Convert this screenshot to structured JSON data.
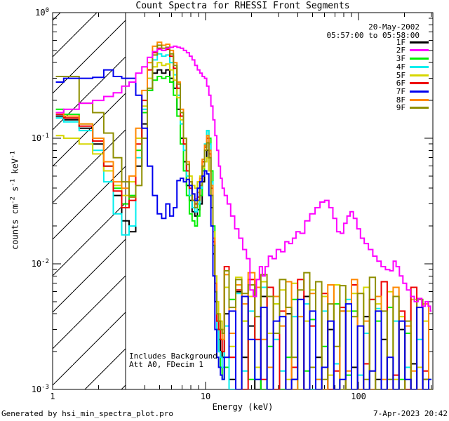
{
  "title": "Count Spectra for RHESSI Front Segments",
  "header": {
    "date": "20-May-2002",
    "time_range": "05:57:00 to 05:58:00"
  },
  "annotations": {
    "line1": "Includes Background",
    "line2": "Att A0, FDecim 1"
  },
  "footer": {
    "left": "Generated by hsi_min_spectra_plot.pro",
    "right": "7-Apr-2023 20:42"
  },
  "axes": {
    "ylabel_parts": [
      "counts cm",
      "-2",
      " s",
      "-1",
      " keV",
      "-1"
    ]
  },
  "chart_data": {
    "type": "line",
    "title": "Count Spectra for RHESSI Front Segments",
    "xlabel": "Energy (keV)",
    "ylabel": "counts cm^-2 s^-1 keV^-1",
    "xscale": "log",
    "yscale": "log",
    "xlim": [
      1,
      306
    ],
    "ylim": [
      0.001,
      1
    ],
    "grid": false,
    "legend_position": "top-right-inside",
    "x_ticks": [
      {
        "value": 1,
        "label": "1"
      },
      {
        "value": 10,
        "label": "10"
      },
      {
        "value": 100,
        "label": "100"
      }
    ],
    "y_ticks": [
      {
        "value": 1,
        "base": "10",
        "exp": "0"
      },
      {
        "value": 0.1,
        "base": "10",
        "exp": "-1"
      },
      {
        "value": 0.01,
        "base": "10",
        "exp": "-2"
      },
      {
        "value": 0.001,
        "base": "10",
        "exp": "-3"
      }
    ],
    "hatch_region": {
      "xmin": 1,
      "xmax": 3
    },
    "energy_grids": {
      "default": [
        1.05,
        1.33,
        1.67,
        2.0,
        2.33,
        2.67,
        3.0,
        3.33,
        3.67,
        4.0,
        4.33,
        4.67,
        5.0,
        5.33,
        5.67,
        6.0,
        6.33,
        6.67,
        7.0,
        7.33,
        7.67,
        8.0,
        8.33,
        8.67,
        9.0,
        9.33,
        9.67,
        10.0,
        10.33,
        10.67,
        11.0,
        11.33,
        11.67,
        12.0,
        12.33,
        12.67,
        13.0,
        13.5,
        15,
        16.5,
        18,
        20,
        22,
        24,
        26.5,
        29,
        32,
        35,
        38,
        42,
        46,
        50,
        55,
        60,
        66,
        72,
        79,
        86,
        94,
        103,
        113,
        123,
        135,
        147,
        161,
        176,
        192,
        210,
        230,
        251,
        275,
        300
      ],
      "f2": [
        1.05,
        1.33,
        1.67,
        2.0,
        2.33,
        2.67,
        3.0,
        3.33,
        3.67,
        4.0,
        4.33,
        4.67,
        5.0,
        5.33,
        5.67,
        6.0,
        6.33,
        6.67,
        7.0,
        7.33,
        7.67,
        8.0,
        8.33,
        8.67,
        9.0,
        9.33,
        9.67,
        10.0,
        10.33,
        10.67,
        11.0,
        11.33,
        11.67,
        12.0,
        12.33,
        12.67,
        13.0,
        13.5,
        14.2,
        15,
        16,
        17,
        18,
        19,
        20,
        21,
        22,
        23,
        24,
        25,
        26.5,
        28,
        30,
        32,
        34,
        36,
        38,
        40,
        43,
        46,
        50,
        54,
        58,
        62,
        66,
        70,
        74,
        78,
        82,
        86,
        90,
        95,
        100,
        106,
        112,
        120,
        128,
        136,
        145,
        155,
        165,
        172,
        180,
        190,
        200,
        212,
        225,
        238,
        252,
        266,
        280,
        290,
        300
      ]
    },
    "draw_order": [
      "1F",
      "3F",
      "4F",
      "5F",
      "6F",
      "8F",
      "9F",
      "7F",
      "2F"
    ],
    "series": [
      {
        "name": "1F",
        "color": "#000000",
        "grid": "default",
        "counts": [
          0.15,
          0.14,
          0.12,
          0.09,
          0.055,
          0.035,
          0.022,
          0.018,
          0.06,
          0.13,
          0.24,
          0.33,
          0.35,
          0.33,
          0.35,
          0.3,
          0.25,
          0.17,
          0.1,
          0.065,
          0.042,
          0.032,
          0.026,
          0.024,
          0.027,
          0.03,
          0.045,
          0.065,
          0.08,
          0.055,
          0.028,
          0.012,
          0.005,
          0.003,
          0.0025,
          0.002,
          0.0018,
          0.004,
          0.0012,
          0.006,
          0.0018,
          0.0032,
          0.001,
          0.0055,
          0.0015,
          0.0028,
          0.001,
          0.004,
          0.0012,
          0.001,
          0.0055,
          0.001,
          0.0018,
          0.001,
          0.003,
          0.001,
          0.0042,
          0.001,
          0.0015,
          0.001,
          0.0038,
          0.001,
          0.0012,
          0.0025,
          0.001,
          0.001,
          0.003,
          0.001,
          0.0016,
          0.001,
          0.0012,
          0.001
        ]
      },
      {
        "name": "2F",
        "color": "#ff00ff",
        "grid": "f2",
        "counts": [
          0.16,
          0.17,
          0.19,
          0.2,
          0.215,
          0.23,
          0.26,
          0.28,
          0.33,
          0.37,
          0.44,
          0.49,
          0.51,
          0.5,
          0.52,
          0.53,
          0.54,
          0.53,
          0.52,
          0.5,
          0.48,
          0.45,
          0.42,
          0.38,
          0.35,
          0.33,
          0.31,
          0.3,
          0.26,
          0.22,
          0.18,
          0.14,
          0.105,
          0.08,
          0.06,
          0.048,
          0.04,
          0.035,
          0.03,
          0.024,
          0.019,
          0.016,
          0.013,
          0.011,
          0.0062,
          0.0055,
          0.0075,
          0.0095,
          0.008,
          0.0095,
          0.0115,
          0.011,
          0.013,
          0.0125,
          0.015,
          0.0145,
          0.016,
          0.018,
          0.0175,
          0.022,
          0.025,
          0.028,
          0.031,
          0.032,
          0.028,
          0.023,
          0.018,
          0.0175,
          0.021,
          0.024,
          0.026,
          0.023,
          0.019,
          0.016,
          0.0145,
          0.013,
          0.0115,
          0.0105,
          0.0095,
          0.009,
          0.0088,
          0.0105,
          0.0095,
          0.008,
          0.007,
          0.0062,
          0.0055,
          0.005,
          0.0053,
          0.0046,
          0.005,
          0.0046,
          0.0042
        ]
      },
      {
        "name": "3F",
        "color": "#00ee00",
        "grid": "default",
        "counts": [
          0.17,
          0.155,
          0.13,
          0.1,
          0.06,
          0.04,
          0.03,
          0.035,
          0.08,
          0.16,
          0.24,
          0.29,
          0.31,
          0.3,
          0.31,
          0.28,
          0.22,
          0.15,
          0.09,
          0.055,
          0.035,
          0.025,
          0.022,
          0.02,
          0.024,
          0.035,
          0.055,
          0.085,
          0.115,
          0.1,
          0.055,
          0.02,
          0.007,
          0.003,
          0.002,
          0.0015,
          0.0012,
          0.0015,
          0.0052,
          0.001,
          0.0035,
          0.0012,
          0.0065,
          0.001,
          0.0022,
          0.0048,
          0.001,
          0.0018,
          0.0052,
          0.001,
          0.0014,
          0.0036,
          0.001,
          0.0022,
          0.001,
          0.0048,
          0.001,
          0.0013,
          0.0042,
          0.001,
          0.0016,
          0.001,
          0.0035,
          0.001,
          0.0045,
          0.001,
          0.0012,
          0.0028,
          0.001,
          0.0015,
          0.001,
          0.001
        ]
      },
      {
        "name": "4F",
        "color": "#00eeee",
        "grid": "default",
        "counts": [
          0.145,
          0.135,
          0.115,
          0.08,
          0.045,
          0.025,
          0.017,
          0.02,
          0.07,
          0.17,
          0.3,
          0.42,
          0.47,
          0.45,
          0.46,
          0.4,
          0.32,
          0.22,
          0.13,
          0.08,
          0.05,
          0.035,
          0.028,
          0.026,
          0.03,
          0.04,
          0.06,
          0.09,
          0.115,
          0.09,
          0.045,
          0.015,
          0.006,
          0.003,
          0.002,
          0.0018,
          0.0015,
          0.0032,
          0.001,
          0.0058,
          0.0014,
          0.0042,
          0.0012,
          0.0065,
          0.001,
          0.0025,
          0.0014,
          0.001,
          0.0038,
          0.001,
          0.0048,
          0.001,
          0.0012,
          0.0042,
          0.001,
          0.0016,
          0.001,
          0.0052,
          0.001,
          0.0013,
          0.0028,
          0.001,
          0.0044,
          0.001,
          0.0012,
          0.0035,
          0.001,
          0.0015,
          0.001,
          0.0025,
          0.001,
          0.0012
        ]
      },
      {
        "name": "5F",
        "color": "#d6d600",
        "grid": "default",
        "counts": [
          0.105,
          0.1,
          0.09,
          0.075,
          0.055,
          0.042,
          0.035,
          0.045,
          0.1,
          0.18,
          0.3,
          0.37,
          0.4,
          0.38,
          0.39,
          0.35,
          0.29,
          0.21,
          0.14,
          0.09,
          0.065,
          0.05,
          0.042,
          0.04,
          0.045,
          0.05,
          0.058,
          0.065,
          0.07,
          0.055,
          0.035,
          0.018,
          0.008,
          0.005,
          0.004,
          0.0035,
          0.003,
          0.0065,
          0.0022,
          0.0078,
          0.0035,
          0.0055,
          0.0015,
          0.0072,
          0.0028,
          0.0048,
          0.0062,
          0.0012,
          0.007,
          0.001,
          0.0035,
          0.0062,
          0.001,
          0.0055,
          0.0013,
          0.0068,
          0.001,
          0.0042,
          0.0058,
          0.001,
          0.0065,
          0.0014,
          0.0048,
          0.001,
          0.006,
          0.0012,
          0.0038,
          0.001,
          0.0052,
          0.0015,
          0.0035,
          0.001
        ]
      },
      {
        "name": "6F",
        "color": "#ee0000",
        "grid": "default",
        "counts": [
          0.155,
          0.145,
          0.125,
          0.095,
          0.06,
          0.038,
          0.028,
          0.032,
          0.09,
          0.2,
          0.35,
          0.48,
          0.52,
          0.5,
          0.51,
          0.45,
          0.36,
          0.25,
          0.15,
          0.09,
          0.055,
          0.04,
          0.032,
          0.03,
          0.034,
          0.045,
          0.065,
          0.085,
          0.1,
          0.075,
          0.04,
          0.015,
          0.006,
          0.0035,
          0.003,
          0.0025,
          0.002,
          0.0095,
          0.0018,
          0.0062,
          0.001,
          0.0075,
          0.0025,
          0.0012,
          0.0065,
          0.001,
          0.0042,
          0.001,
          0.0015,
          0.0075,
          0.001,
          0.0032,
          0.001,
          0.0058,
          0.001,
          0.0014,
          0.0045,
          0.001,
          0.0068,
          0.001,
          0.0016,
          0.0052,
          0.001,
          0.0072,
          0.001,
          0.0013,
          0.0042,
          0.001,
          0.0065,
          0.001,
          0.0014,
          0.001
        ]
      },
      {
        "name": "7F",
        "color": "#0000ee",
        "grid": "default",
        "counts": [
          0.28,
          0.3,
          0.3,
          0.305,
          0.35,
          0.31,
          0.3,
          0.3,
          0.22,
          0.12,
          0.06,
          0.035,
          0.025,
          0.023,
          0.03,
          0.024,
          0.028,
          0.046,
          0.048,
          0.045,
          0.047,
          0.042,
          0.036,
          0.032,
          0.04,
          0.045,
          0.05,
          0.055,
          0.052,
          0.035,
          0.02,
          0.008,
          0.003,
          0.0018,
          0.0015,
          0.0013,
          0.0012,
          0.0018,
          0.0042,
          0.001,
          0.0055,
          0.0025,
          0.0012,
          0.0045,
          0.001,
          0.0035,
          0.0038,
          0.001,
          0.0012,
          0.0052,
          0.001,
          0.0042,
          0.001,
          0.0015,
          0.0035,
          0.001,
          0.0012,
          0.0048,
          0.001,
          0.0032,
          0.001,
          0.0014,
          0.0042,
          0.001,
          0.0018,
          0.001,
          0.0035,
          0.0012,
          0.001,
          0.0045,
          0.001,
          0.0012
        ]
      },
      {
        "name": "8F",
        "color": "#ff8800",
        "grid": "default",
        "counts": [
          0.16,
          0.15,
          0.13,
          0.1,
          0.065,
          0.045,
          0.04,
          0.05,
          0.12,
          0.24,
          0.4,
          0.54,
          0.58,
          0.55,
          0.56,
          0.5,
          0.4,
          0.28,
          0.17,
          0.1,
          0.065,
          0.045,
          0.036,
          0.033,
          0.037,
          0.048,
          0.068,
          0.088,
          0.105,
          0.08,
          0.042,
          0.016,
          0.007,
          0.004,
          0.0035,
          0.003,
          0.0025,
          0.0082,
          0.0028,
          0.0068,
          0.0048,
          0.0085,
          0.0065,
          0.0025,
          0.0015,
          0.0055,
          0.0032,
          0.0072,
          0.001,
          0.0038,
          0.001,
          0.0058,
          0.0012,
          0.001,
          0.0068,
          0.001,
          0.0042,
          0.0014,
          0.0075,
          0.001,
          0.0035,
          0.001,
          0.0055,
          0.0012,
          0.001,
          0.0065,
          0.001,
          0.0032,
          0.0014,
          0.001,
          0.0048,
          0.001
        ]
      },
      {
        "name": "9F",
        "color": "#8f8f00",
        "grid": "default",
        "counts": [
          0.31,
          0.31,
          0.19,
          0.16,
          0.11,
          0.07,
          0.045,
          0.034,
          0.042,
          0.1,
          0.25,
          0.46,
          0.55,
          0.52,
          0.53,
          0.47,
          0.38,
          0.27,
          0.16,
          0.1,
          0.062,
          0.045,
          0.032,
          0.028,
          0.032,
          0.042,
          0.06,
          0.08,
          0.092,
          0.07,
          0.035,
          0.014,
          0.006,
          0.004,
          0.0035,
          0.003,
          0.0028,
          0.0088,
          0.0045,
          0.0075,
          0.0058,
          0.0068,
          0.0038,
          0.0082,
          0.0055,
          0.0028,
          0.0075,
          0.0045,
          0.0018,
          0.0062,
          0.0085,
          0.0015,
          0.0072,
          0.0012,
          0.0048,
          0.0022,
          0.0067,
          0.001,
          0.0038,
          0.0058,
          0.0012,
          0.0078,
          0.001,
          0.0042,
          0.0012,
          0.0055,
          0.001,
          0.0035,
          0.001,
          0.0052,
          0.0012,
          0.001
        ]
      }
    ]
  }
}
